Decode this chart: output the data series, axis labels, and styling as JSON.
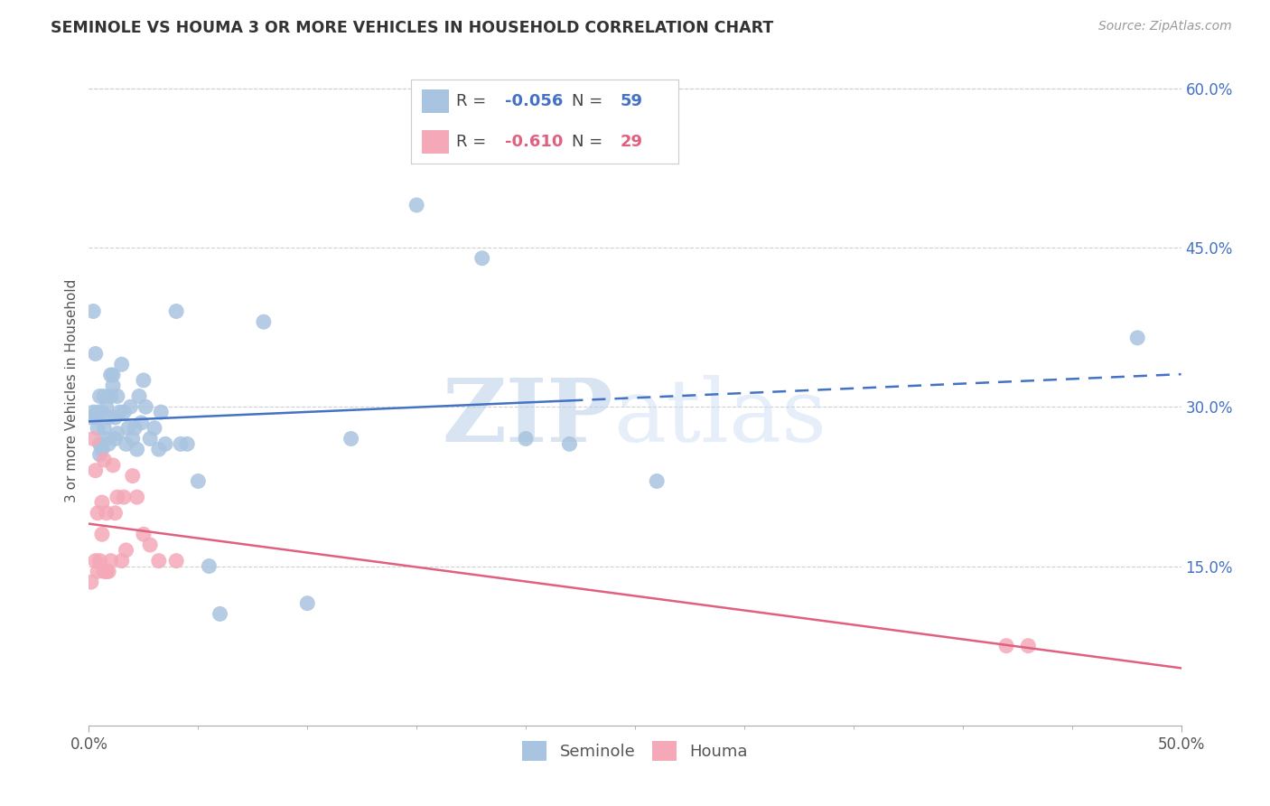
{
  "title": "SEMINOLE VS HOUMA 3 OR MORE VEHICLES IN HOUSEHOLD CORRELATION CHART",
  "source": "Source: ZipAtlas.com",
  "ylabel": "3 or more Vehicles in Household",
  "xlim": [
    0.0,
    0.5
  ],
  "ylim": [
    0.0,
    0.63
  ],
  "xtick_positions": [
    0.0,
    0.5
  ],
  "xtick_labels": [
    "0.0%",
    "50.0%"
  ],
  "yticks_right": [
    0.15,
    0.3,
    0.45,
    0.6
  ],
  "ytick_right_labels": [
    "15.0%",
    "30.0%",
    "45.0%",
    "60.0%"
  ],
  "seminole_R": -0.056,
  "seminole_N": 59,
  "houma_R": -0.61,
  "houma_N": 29,
  "seminole_color": "#a8c4e0",
  "houma_color": "#f4a8b8",
  "seminole_line_color": "#4472c4",
  "houma_line_color": "#e06080",
  "watermark_zip_color": "#b8cfe8",
  "watermark_atlas_color": "#c8daf2",
  "seminole_x": [
    0.001,
    0.002,
    0.002,
    0.003,
    0.003,
    0.004,
    0.004,
    0.005,
    0.005,
    0.005,
    0.006,
    0.006,
    0.007,
    0.007,
    0.008,
    0.008,
    0.009,
    0.009,
    0.01,
    0.01,
    0.011,
    0.011,
    0.012,
    0.012,
    0.013,
    0.013,
    0.014,
    0.015,
    0.016,
    0.017,
    0.018,
    0.019,
    0.02,
    0.021,
    0.022,
    0.023,
    0.024,
    0.025,
    0.026,
    0.028,
    0.03,
    0.032,
    0.033,
    0.035,
    0.04,
    0.042,
    0.045,
    0.05,
    0.055,
    0.06,
    0.08,
    0.1,
    0.12,
    0.15,
    0.18,
    0.2,
    0.22,
    0.26,
    0.48
  ],
  "seminole_y": [
    0.29,
    0.39,
    0.295,
    0.35,
    0.29,
    0.28,
    0.295,
    0.31,
    0.265,
    0.255,
    0.295,
    0.26,
    0.28,
    0.31,
    0.3,
    0.27,
    0.265,
    0.29,
    0.31,
    0.33,
    0.32,
    0.33,
    0.27,
    0.29,
    0.31,
    0.275,
    0.295,
    0.34,
    0.295,
    0.265,
    0.28,
    0.3,
    0.27,
    0.28,
    0.26,
    0.31,
    0.285,
    0.325,
    0.3,
    0.27,
    0.28,
    0.26,
    0.295,
    0.265,
    0.39,
    0.265,
    0.265,
    0.23,
    0.15,
    0.105,
    0.38,
    0.115,
    0.27,
    0.49,
    0.44,
    0.27,
    0.265,
    0.23,
    0.365
  ],
  "houma_x": [
    0.001,
    0.002,
    0.003,
    0.003,
    0.004,
    0.004,
    0.005,
    0.006,
    0.006,
    0.007,
    0.007,
    0.008,
    0.008,
    0.009,
    0.01,
    0.011,
    0.012,
    0.013,
    0.015,
    0.016,
    0.017,
    0.02,
    0.022,
    0.025,
    0.028,
    0.032,
    0.04,
    0.42,
    0.43
  ],
  "houma_y": [
    0.135,
    0.27,
    0.24,
    0.155,
    0.2,
    0.145,
    0.155,
    0.21,
    0.18,
    0.25,
    0.145,
    0.145,
    0.2,
    0.145,
    0.155,
    0.245,
    0.2,
    0.215,
    0.155,
    0.215,
    0.165,
    0.235,
    0.215,
    0.18,
    0.17,
    0.155,
    0.155,
    0.075,
    0.075
  ],
  "background_color": "#ffffff",
  "grid_color": "#d0d0d0",
  "seminole_line_solid_end": 0.22,
  "houma_line_x_start": 0.0,
  "houma_line_x_end": 0.5
}
